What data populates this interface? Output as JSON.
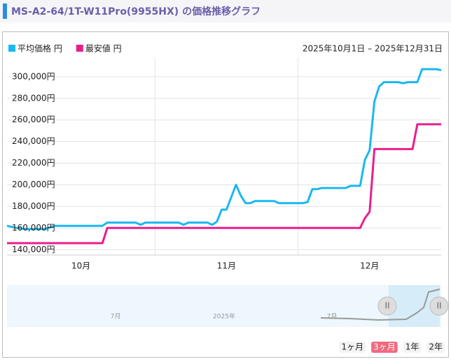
{
  "header": {
    "title": "MS-A2-64/1T-W11Pro(9955HX) の価格推移グラフ"
  },
  "chart_data": {
    "type": "line",
    "date_range": "2025年10月1日 – 2025年12月31日",
    "x": [
      "2025-10-01",
      "2025-10-03",
      "2025-10-05",
      "2025-10-09",
      "2025-10-11",
      "2025-10-21",
      "2025-10-22",
      "2025-10-28",
      "2025-10-29",
      "2025-10-30",
      "2025-11-06",
      "2025-11-07",
      "2025-11-08",
      "2025-11-12",
      "2025-11-13",
      "2025-11-14",
      "2025-11-15",
      "2025-11-16",
      "2025-11-18",
      "2025-11-19",
      "2025-11-20",
      "2025-11-21",
      "2025-11-22",
      "2025-11-26",
      "2025-11-27",
      "2025-12-02",
      "2025-12-03",
      "2025-12-04",
      "2025-12-05",
      "2025-12-06",
      "2025-12-11",
      "2025-12-12",
      "2025-12-14",
      "2025-12-15",
      "2025-12-16",
      "2025-12-17",
      "2025-12-18",
      "2025-12-19",
      "2025-12-22",
      "2025-12-23",
      "2025-12-24",
      "2025-12-25",
      "2025-12-26",
      "2025-12-27",
      "2025-12-30",
      "2025-12-31"
    ],
    "series": [
      {
        "name": "平均価格 円",
        "color": "#1ab8ef",
        "values": [
          162000,
          160000,
          159000,
          159000,
          162000,
          162000,
          165000,
          165000,
          163000,
          165000,
          165000,
          163000,
          165000,
          165000,
          163000,
          166000,
          177000,
          177000,
          200000,
          190000,
          183000,
          183000,
          185000,
          185000,
          183000,
          183000,
          184000,
          196000,
          196000,
          197000,
          197000,
          199000,
          199000,
          223000,
          232000,
          277000,
          291000,
          295000,
          295000,
          294000,
          295000,
          295000,
          295000,
          307000,
          307000,
          306000
        ]
      },
      {
        "name": "最安値 円",
        "color": "#e91e8c",
        "values": [
          146000,
          146000,
          146000,
          146000,
          146000,
          146000,
          160000,
          160000,
          160000,
          160000,
          160000,
          160000,
          160000,
          160000,
          160000,
          160000,
          160000,
          160000,
          160000,
          160000,
          160000,
          160000,
          160000,
          160000,
          160000,
          160000,
          160000,
          160000,
          160000,
          160000,
          160000,
          160000,
          160000,
          169000,
          175000,
          233000,
          233000,
          233000,
          233000,
          233000,
          233000,
          233000,
          256000,
          256000,
          256000,
          256000
        ]
      }
    ],
    "xlim": [
      "2025-10-01",
      "2025-12-31"
    ],
    "xticks": [
      {
        "value": "2025-10-01",
        "label": "10月"
      },
      {
        "value": "2025-11-01",
        "label": "11月"
      },
      {
        "value": "2025-12-01",
        "label": "12月"
      }
    ],
    "ylim": [
      135000,
      318000
    ],
    "yticks": [
      {
        "value": 140000,
        "label": "140,000円"
      },
      {
        "value": 160000,
        "label": "160,000円"
      },
      {
        "value": 180000,
        "label": "180,000円"
      },
      {
        "value": 200000,
        "label": "200,000円"
      },
      {
        "value": 220000,
        "label": "220,000円"
      },
      {
        "value": 240000,
        "label": "240,000円"
      },
      {
        "value": 260000,
        "label": "260,000円"
      },
      {
        "value": 280000,
        "label": "280,000円"
      },
      {
        "value": 300000,
        "label": "300,000円"
      }
    ],
    "grid": true,
    "navigator": {
      "labels": [
        "7月",
        "2025年",
        "7月"
      ],
      "buttons": [
        "1ヶ月",
        "3ヶ月",
        "1年",
        "2年"
      ],
      "selected": 1
    }
  }
}
